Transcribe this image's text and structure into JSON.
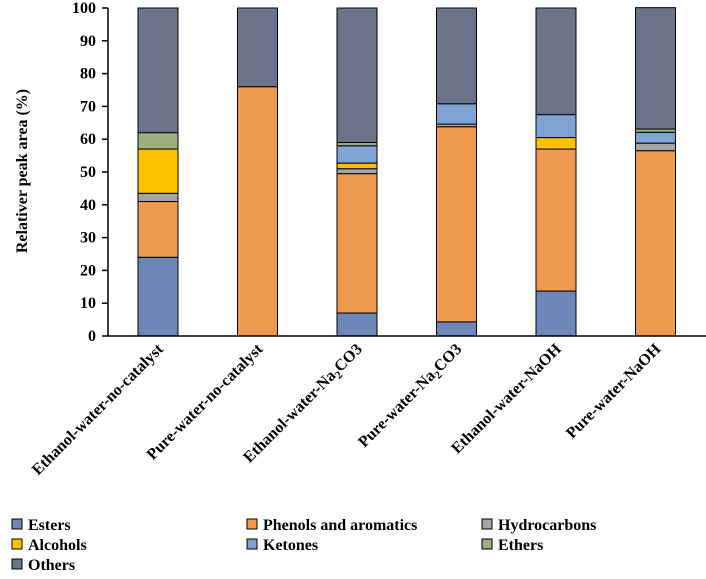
{
  "chart_data": {
    "type": "bar",
    "stacked": true,
    "title": "",
    "xlabel": "",
    "ylabel": "Relativer peak area (%)",
    "ylim": [
      0,
      100
    ],
    "yticks": [
      0,
      10,
      20,
      30,
      40,
      50,
      60,
      70,
      80,
      90,
      100
    ],
    "grid": false,
    "legend_position": "bottom",
    "categories": [
      {
        "pre": "Ethanol-water-no-catalyst",
        "sub": "",
        "post": ""
      },
      {
        "pre": "Pure-water-no-catalyst",
        "sub": "",
        "post": ""
      },
      {
        "pre": "Ethanol-water-Na",
        "sub": "2",
        "post": "CO3"
      },
      {
        "pre": "Pure-water-Na",
        "sub": "2",
        "post": "CO3"
      },
      {
        "pre": "Ethanol-water-NaOH",
        "sub": "",
        "post": ""
      },
      {
        "pre": "Pure-water-NaOH",
        "sub": "",
        "post": ""
      }
    ],
    "series": [
      {
        "name": "Esters",
        "color": "#6f87b8",
        "values": [
          24,
          0,
          7,
          4.3,
          13.7,
          0
        ]
      },
      {
        "name": "Phenols and aromatics",
        "color": "#ee9a4e",
        "values": [
          17,
          76,
          42.5,
          59.5,
          43.3,
          56.5
        ]
      },
      {
        "name": "Hydrocarbons",
        "color": "#a6a6a6",
        "values": [
          2.5,
          0,
          1.5,
          0.8,
          0,
          2.3
        ]
      },
      {
        "name": "Alcohols",
        "color": "#ffc000",
        "values": [
          13.5,
          0,
          1.7,
          0,
          3.5,
          0
        ]
      },
      {
        "name": "Ketones",
        "color": "#7fa3d3",
        "values": [
          0,
          0,
          5.3,
          6.2,
          7,
          3.3
        ]
      },
      {
        "name": "Ethers",
        "color": "#9aae80",
        "values": [
          5,
          0,
          1,
          0,
          0,
          1
        ]
      },
      {
        "name": "Others",
        "color": "#6b738a",
        "values": [
          38,
          24,
          41,
          29.2,
          32.5,
          37
        ]
      }
    ]
  }
}
